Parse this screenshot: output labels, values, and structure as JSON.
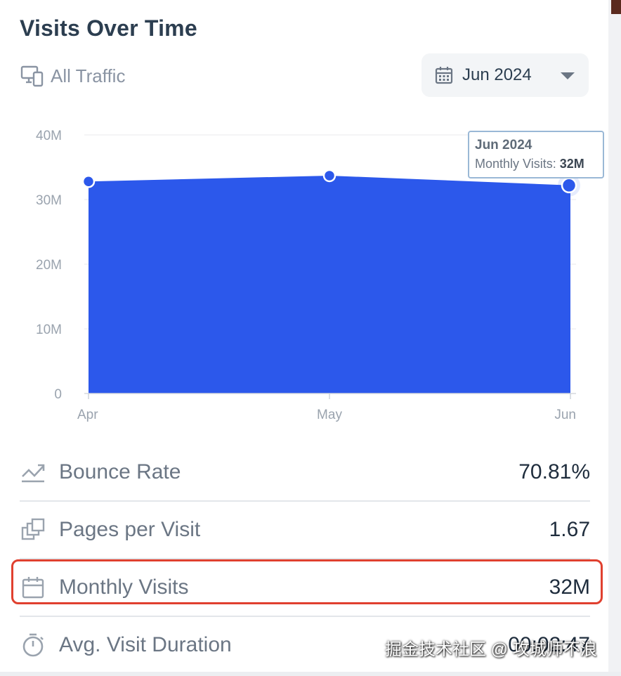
{
  "widget": {
    "title": "Visits Over Time",
    "traffic_filter": {
      "icon": "devices-icon",
      "label": "All Traffic"
    },
    "date_selector": {
      "icon": "calendar-icon",
      "value": "Jun 2024"
    }
  },
  "tooltip": {
    "title": "Jun 2024",
    "label": "Monthly Visits:",
    "value": "32M"
  },
  "chart_data": {
    "type": "area",
    "categories": [
      "Apr",
      "May",
      "Jun"
    ],
    "series": [
      {
        "values": [
          32.8,
          33.7,
          32.2
        ]
      }
    ],
    "y_ticks": [
      "0",
      "10M",
      "20M",
      "30M",
      "40M"
    ],
    "ylim": [
      0,
      40
    ],
    "grid": true,
    "fill_color": "#2c58eb"
  },
  "metrics": [
    {
      "icon": "bounce-rate-icon",
      "label": "Bounce Rate",
      "value": "70.81%"
    },
    {
      "icon": "pages-icon",
      "label": "Pages per Visit",
      "value": "1.67"
    },
    {
      "icon": "calendar-icon",
      "label": "Monthly Visits",
      "value": "32M"
    },
    {
      "icon": "stopwatch-icon",
      "label": "Avg. Visit Duration",
      "value": "00:02:47"
    }
  ],
  "watermark": "掘金技术社区 @ 攻城师不浪",
  "colors": {
    "accent": "#2c58eb",
    "highlight": "#e0402f",
    "muted_text": "#6b7684"
  }
}
